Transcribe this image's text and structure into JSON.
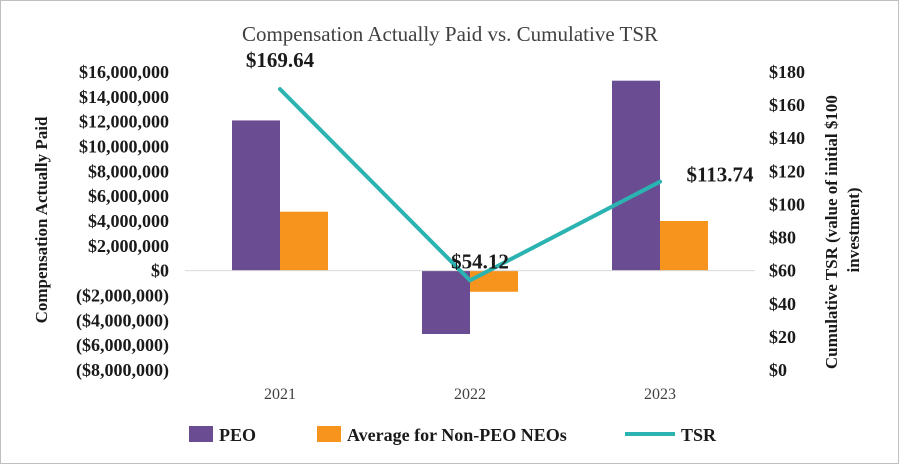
{
  "chart_data": {
    "type": "bar",
    "title": "Compensation Actually Paid vs. Cumulative TSR",
    "categories": [
      "2021",
      "2022",
      "2023"
    ],
    "ylabel": "Compensation Actually Paid",
    "y2label_line1": "Cumulative TSR (value of initial $100",
    "y2label_line2": "investment)",
    "ylim": [
      -8000000,
      16000000
    ],
    "y2lim": [
      0,
      180
    ],
    "yticks": [
      16000000,
      14000000,
      12000000,
      10000000,
      8000000,
      6000000,
      4000000,
      2000000,
      0,
      -2000000,
      -4000000,
      -6000000,
      -8000000
    ],
    "ytick_labels": [
      "$16,000,000",
      "$14,000,000",
      "$12,000,000",
      "$10,000,000",
      "$8,000,000",
      "$6,000,000",
      "$4,000,000",
      "$2,000,000",
      "$0",
      "($2,000,000)",
      "($4,000,000)",
      "($6,000,000)",
      "($8,000,000)"
    ],
    "y2ticks": [
      180,
      160,
      140,
      120,
      100,
      80,
      60,
      40,
      20,
      0
    ],
    "y2tick_labels": [
      "$180",
      "$160",
      "$140",
      "$120",
      "$100",
      "$80",
      "$60",
      "$40",
      "$20",
      "$0"
    ],
    "series": [
      {
        "name": "PEO",
        "type": "bar",
        "axis": "left",
        "color": "#6a4c93",
        "values": [
          12100000,
          -5100000,
          15300000
        ]
      },
      {
        "name": "Average for Non-PEO NEOs",
        "type": "bar",
        "axis": "left",
        "color": "#f7941d",
        "values": [
          4750000,
          -1700000,
          4000000
        ]
      },
      {
        "name": "TSR",
        "type": "line",
        "axis": "right",
        "color": "#2ab3b1",
        "values": [
          169.64,
          54.12,
          113.74
        ],
        "labels": [
          "$169.64",
          "$54.12",
          "$113.74"
        ]
      }
    ],
    "legend_position": "bottom",
    "grid": false
  }
}
